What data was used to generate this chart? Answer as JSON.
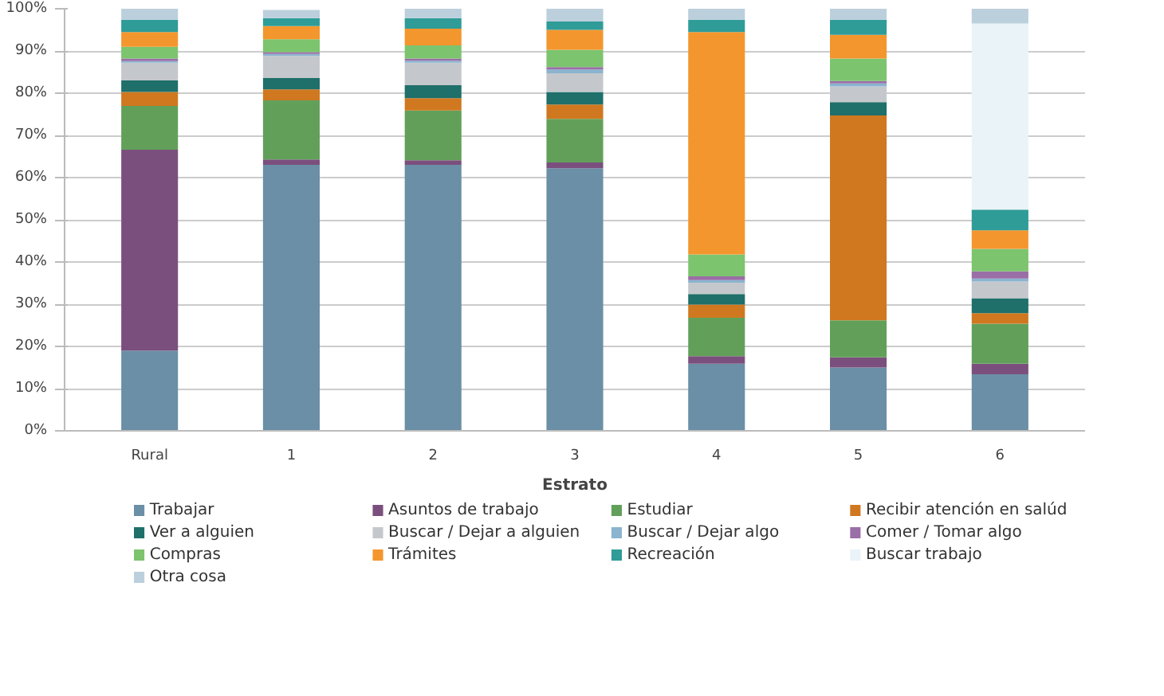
{
  "chart_data": {
    "type": "bar",
    "stacked": true,
    "xlabel": "Estrato",
    "categories": [
      "Rural",
      "1",
      "2",
      "3",
      "4",
      "5",
      "6"
    ],
    "ylim": [
      0,
      100
    ],
    "yticks": [
      {
        "value": 0,
        "label": "0%"
      },
      {
        "value": 10,
        "label": "10%"
      },
      {
        "value": 20,
        "label": "20%"
      },
      {
        "value": 30,
        "label": "30%"
      },
      {
        "value": 40,
        "label": "40%"
      },
      {
        "value": 50,
        "label": "50%"
      },
      {
        "value": 60,
        "label": "60%"
      },
      {
        "value": 70,
        "label": "70%"
      },
      {
        "value": 80,
        "label": "80%"
      },
      {
        "value": 90,
        "label": "90%"
      },
      {
        "value": 100,
        "label": "100%"
      }
    ],
    "grid": "y",
    "legend": "bottom",
    "series": [
      {
        "name": "Trabajar",
        "color": "#6a8fa6",
        "values": [
          19,
          63,
          63,
          62.2,
          15.9,
          15,
          13.4
        ]
      },
      {
        "name": "Asuntos de trabajo",
        "color": "#7b4f7d",
        "values": [
          47.6,
          1.3,
          1.1,
          1.4,
          1.8,
          2.4,
          2.5
        ]
      },
      {
        "name": "Estudiar",
        "color": "#62a05a",
        "values": [
          10.4,
          14,
          11.8,
          10.3,
          9.1,
          8.8,
          9.5
        ]
      },
      {
        "name": "Recibir atención en salúd",
        "color": "#d0781f",
        "values": [
          3.3,
          2.6,
          2.9,
          3.4,
          3.1,
          48.5,
          2.5
        ]
      },
      {
        "name": "Ver a alguien",
        "color": "#1f6f6a",
        "values": [
          2.7,
          2.7,
          3.1,
          3,
          2.5,
          3.2,
          3.5
        ]
      },
      {
        "name": "Buscar / Dejar a alguien",
        "color": "#c4c8cc",
        "values": [
          4.2,
          5.2,
          5.3,
          4.4,
          2.7,
          3.7,
          4
        ]
      },
      {
        "name": "Buscar / Dejar algo",
        "color": "#8ab4cf",
        "values": [
          0.4,
          0.5,
          0.5,
          0.9,
          0.6,
          0.7,
          0.7
        ]
      },
      {
        "name": "Comer / Tomar algo",
        "color": "#9a6ea6",
        "values": [
          0.6,
          0.4,
          0.5,
          0.6,
          0.9,
          0.6,
          1.7
        ]
      },
      {
        "name": "Compras",
        "color": "#7cc46e",
        "values": [
          2.8,
          3.1,
          3.1,
          4.1,
          5.2,
          5.3,
          5.3
        ]
      },
      {
        "name": "Trámites",
        "color": "#f4962e",
        "values": [
          3.5,
          3.1,
          4,
          4.7,
          52.7,
          5.6,
          4.4
        ]
      },
      {
        "name": "Recreación",
        "color": "#2f9c98",
        "values": [
          2.9,
          1.9,
          2.5,
          2,
          2.9,
          3.6,
          4.9
        ]
      },
      {
        "name": "Buscar trabajo",
        "color": "#eaf3f8",
        "values": [
          0,
          null,
          0,
          0,
          0,
          0,
          44.1
        ]
      },
      {
        "name": "Otra cosa",
        "color": "#bccfdc",
        "values": [
          2.6,
          1.9,
          2.2,
          3,
          2.6,
          2.6,
          3.5
        ]
      }
    ]
  }
}
